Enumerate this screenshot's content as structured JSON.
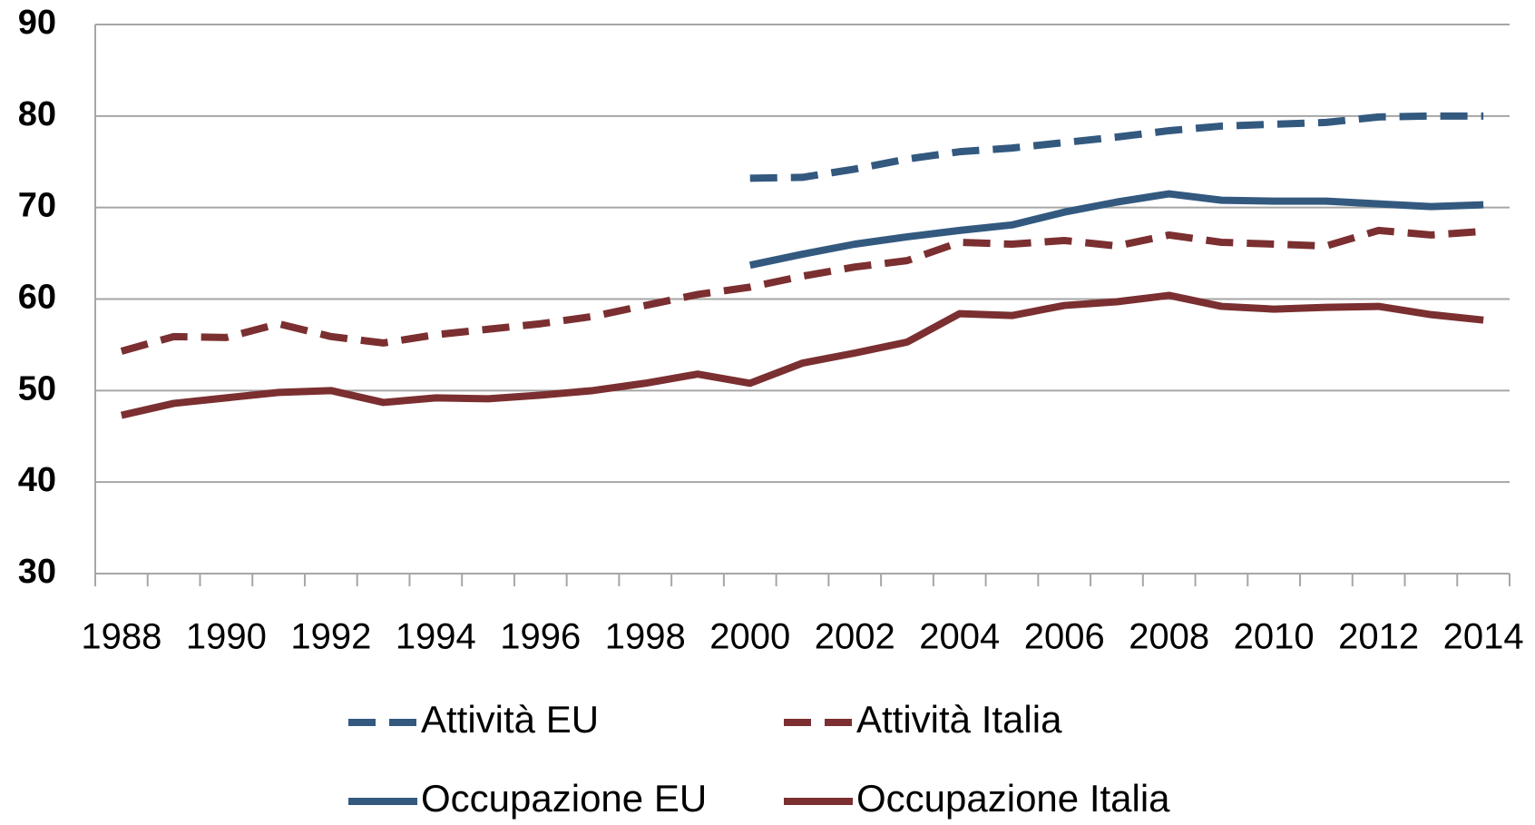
{
  "chart_data": {
    "type": "line",
    "categories": [
      "1988",
      null,
      "1990",
      null,
      "1992",
      null,
      "1994",
      null,
      "1996",
      null,
      "1998",
      null,
      "2000",
      null,
      "2002",
      null,
      "2004",
      null,
      "2006",
      null,
      "2008",
      null,
      "2010",
      null,
      "2012",
      null,
      "2014"
    ],
    "series": [
      {
        "name": "Attività EU",
        "color": "#33597f",
        "dashed": true,
        "values": [
          null,
          null,
          null,
          null,
          null,
          null,
          null,
          null,
          null,
          null,
          null,
          null,
          73.2,
          73.3,
          74.2,
          75.3,
          76.1,
          76.5,
          77.1,
          77.7,
          78.4,
          78.9,
          79.1,
          79.3,
          79.9,
          80.0,
          80.0
        ]
      },
      {
        "name": "Attività Italia",
        "color": "#7b2f30",
        "dashed": true,
        "values": [
          54.3,
          55.9,
          55.8,
          57.3,
          55.9,
          55.2,
          56.1,
          56.7,
          57.3,
          58.1,
          59.3,
          60.5,
          61.3,
          62.5,
          63.5,
          64.2,
          66.2,
          66.0,
          66.4,
          65.8,
          67.0,
          66.2,
          66.0,
          65.8,
          67.5,
          67.0,
          67.4
        ]
      },
      {
        "name": "Occupazione EU",
        "color": "#33597f",
        "dashed": false,
        "values": [
          null,
          null,
          null,
          null,
          null,
          null,
          null,
          null,
          null,
          null,
          null,
          null,
          63.7,
          64.9,
          66.0,
          66.8,
          67.5,
          68.1,
          69.5,
          70.6,
          71.5,
          70.8,
          70.7,
          70.7,
          70.4,
          70.1,
          70.3
        ]
      },
      {
        "name": "Occupazione Italia",
        "color": "#7b2f30",
        "dashed": false,
        "values": [
          47.3,
          48.6,
          49.2,
          49.8,
          50.0,
          48.7,
          49.2,
          49.1,
          49.5,
          50.0,
          50.8,
          51.8,
          50.8,
          53.0,
          54.1,
          55.3,
          58.4,
          58.2,
          59.3,
          59.7,
          60.4,
          59.2,
          58.9,
          59.1,
          59.2,
          58.3,
          57.7
        ]
      }
    ],
    "ylim": [
      30,
      90
    ],
    "yticks": [
      30,
      40,
      50,
      60,
      70,
      80,
      90
    ],
    "grid": true
  }
}
